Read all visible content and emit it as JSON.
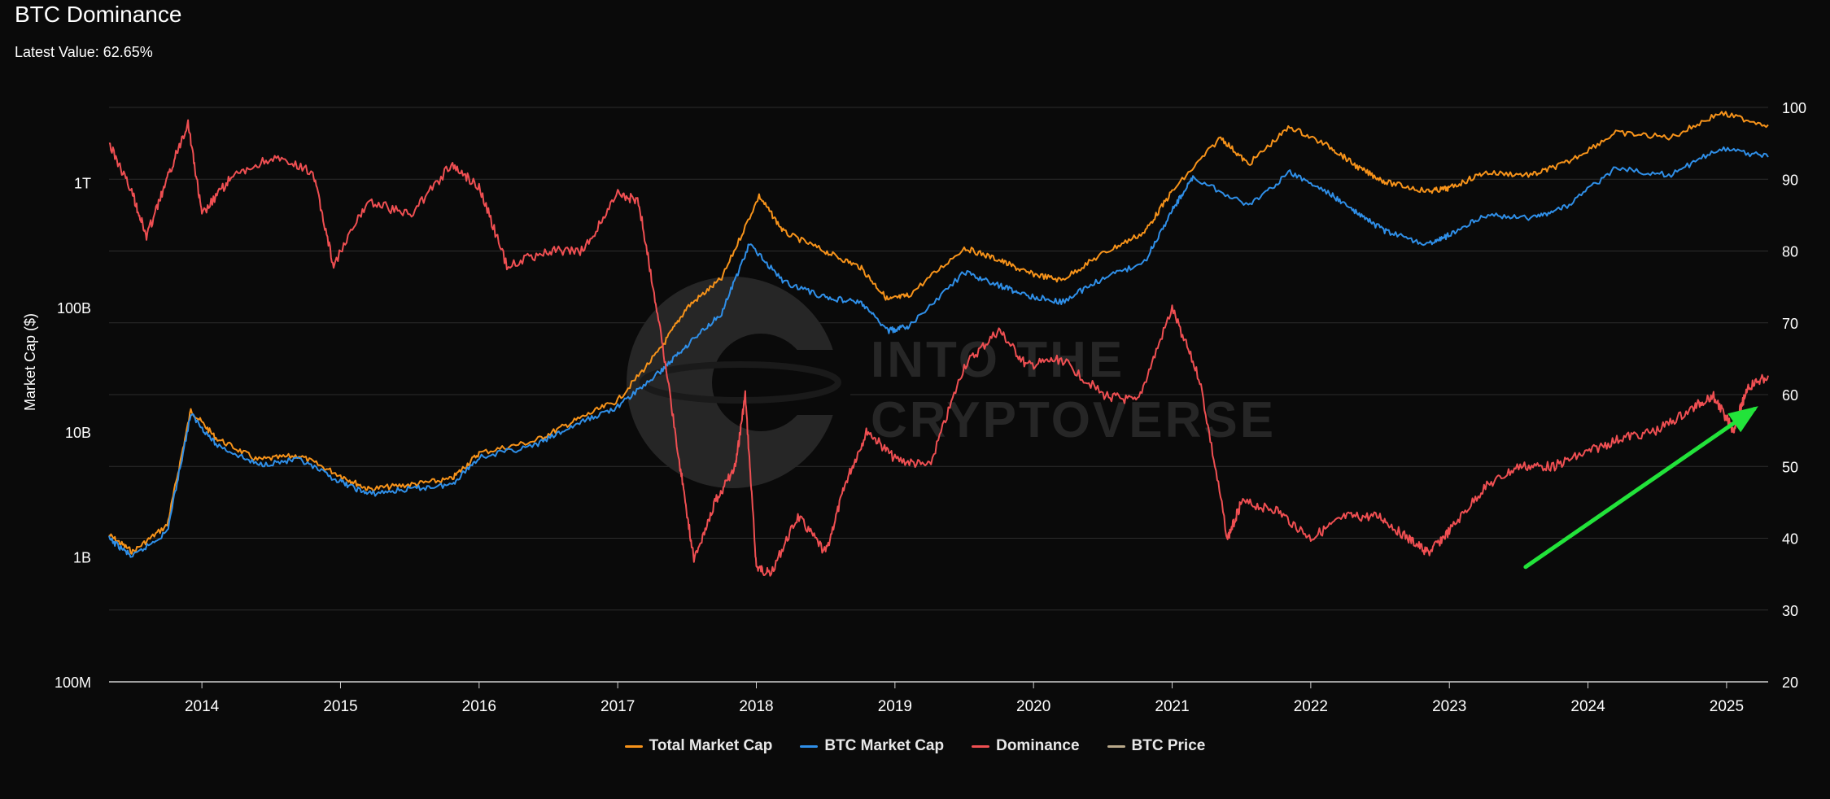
{
  "header": {
    "title": "BTC Dominance",
    "latest_value": "Latest Value: 62.65%"
  },
  "watermark": {
    "line1": "INTO THE",
    "line2": "CRYPTOVERSE"
  },
  "legend": [
    {
      "label": "Total Market Cap",
      "color": "#f7931a"
    },
    {
      "label": "BTC Market Cap",
      "color": "#2f8fe8"
    },
    {
      "label": "Dominance",
      "color": "#ef4f52"
    },
    {
      "label": "BTC Price",
      "color": "#b9a98a"
    }
  ],
  "chart_data": {
    "type": "line",
    "ylabel": "Market Cap ($)",
    "x_ticks": [
      "2014",
      "2015",
      "2016",
      "2017",
      "2018",
      "2019",
      "2020",
      "2021",
      "2022",
      "2023",
      "2024",
      "2025"
    ],
    "xlim": [
      2013.33,
      2025.3
    ],
    "y_left": {
      "scale": "log",
      "range": [
        100000000,
        4000000000000
      ],
      "ticks": [
        "100M",
        "1B",
        "10B",
        "100B",
        "1T"
      ],
      "tick_values": [
        100000000,
        1000000000,
        10000000000,
        100000000000,
        1000000000000
      ]
    },
    "y_right": {
      "range": [
        20,
        100
      ],
      "ticks": [
        "20",
        "30",
        "40",
        "50",
        "60",
        "70",
        "80",
        "90",
        "100"
      ]
    },
    "grid": true,
    "legend_position": "bottom-center",
    "series": [
      {
        "name": "Total Market Cap",
        "color": "#f7931a",
        "axis": "left",
        "points": [
          [
            2013.33,
            1500000000.0
          ],
          [
            2013.5,
            1100000000.0
          ],
          [
            2013.75,
            1800000000.0
          ],
          [
            2013.92,
            15000000000.0
          ],
          [
            2014.1,
            9000000000.0
          ],
          [
            2014.4,
            6000000000.0
          ],
          [
            2014.7,
            6500000000.0
          ],
          [
            2015.0,
            4500000000.0
          ],
          [
            2015.2,
            3500000000.0
          ],
          [
            2015.5,
            3800000000.0
          ],
          [
            2015.8,
            4200000000.0
          ],
          [
            2016.0,
            6800000000.0
          ],
          [
            2016.4,
            8500000000.0
          ],
          [
            2016.7,
            12500000000.0
          ],
          [
            2017.0,
            18000000000.0
          ],
          [
            2017.3,
            45000000000.0
          ],
          [
            2017.5,
            100000000000.0
          ],
          [
            2017.75,
            170000000000.0
          ],
          [
            2018.02,
            780000000000.0
          ],
          [
            2018.2,
            400000000000.0
          ],
          [
            2018.5,
            280000000000.0
          ],
          [
            2018.75,
            210000000000.0
          ],
          [
            2018.95,
            115000000000.0
          ],
          [
            2019.1,
            125000000000.0
          ],
          [
            2019.5,
            300000000000.0
          ],
          [
            2019.75,
            240000000000.0
          ],
          [
            2019.95,
            190000000000.0
          ],
          [
            2020.2,
            165000000000.0
          ],
          [
            2020.5,
            270000000000.0
          ],
          [
            2020.8,
            400000000000.0
          ],
          [
            2021.0,
            850000000000.0
          ],
          [
            2021.35,
            2300000000000.0
          ],
          [
            2021.55,
            1400000000000.0
          ],
          [
            2021.85,
            2800000000000.0
          ],
          [
            2022.15,
            1900000000000.0
          ],
          [
            2022.35,
            1300000000000.0
          ],
          [
            2022.55,
            1000000000000.0
          ],
          [
            2022.85,
            850000000000.0
          ],
          [
            2023.0,
            900000000000.0
          ],
          [
            2023.25,
            1200000000000.0
          ],
          [
            2023.6,
            1150000000000.0
          ],
          [
            2023.85,
            1450000000000.0
          ],
          [
            2024.2,
            2500000000000.0
          ],
          [
            2024.6,
            2300000000000.0
          ],
          [
            2024.95,
            3600000000000.0
          ],
          [
            2025.3,
            2900000000000.0
          ]
        ]
      },
      {
        "name": "BTC Market Cap",
        "color": "#2f8fe8",
        "axis": "left",
        "points": [
          [
            2013.33,
            1400000000.0
          ],
          [
            2013.5,
            1000000000.0
          ],
          [
            2013.75,
            1600000000.0
          ],
          [
            2013.92,
            14000000000.0
          ],
          [
            2014.1,
            8000000000.0
          ],
          [
            2014.4,
            5500000000.0
          ],
          [
            2014.7,
            6000000000.0
          ],
          [
            2015.0,
            4000000000.0
          ],
          [
            2015.2,
            3200000000.0
          ],
          [
            2015.5,
            3500000000.0
          ],
          [
            2015.8,
            3800000000.0
          ],
          [
            2016.0,
            6300000000.0
          ],
          [
            2016.4,
            7800000000.0
          ],
          [
            2016.7,
            11500000000.0
          ],
          [
            2017.0,
            16000000000.0
          ],
          [
            2017.3,
            30000000000.0
          ],
          [
            2017.5,
            50000000000.0
          ],
          [
            2017.75,
            90000000000.0
          ],
          [
            2017.95,
            320000000000.0
          ],
          [
            2018.2,
            160000000000.0
          ],
          [
            2018.5,
            120000000000.0
          ],
          [
            2018.75,
            110000000000.0
          ],
          [
            2018.95,
            65000000000.0
          ],
          [
            2019.1,
            70000000000.0
          ],
          [
            2019.5,
            190000000000.0
          ],
          [
            2019.75,
            150000000000.0
          ],
          [
            2019.95,
            125000000000.0
          ],
          [
            2020.2,
            110000000000.0
          ],
          [
            2020.5,
            170000000000.0
          ],
          [
            2020.8,
            230000000000.0
          ],
          [
            2021.0,
            600000000000.0
          ],
          [
            2021.15,
            1100000000000.0
          ],
          [
            2021.55,
            650000000000.0
          ],
          [
            2021.85,
            1200000000000.0
          ],
          [
            2022.15,
            800000000000.0
          ],
          [
            2022.35,
            550000000000.0
          ],
          [
            2022.55,
            400000000000.0
          ],
          [
            2022.85,
            320000000000.0
          ],
          [
            2023.0,
            380000000000.0
          ],
          [
            2023.25,
            550000000000.0
          ],
          [
            2023.6,
            520000000000.0
          ],
          [
            2023.85,
            650000000000.0
          ],
          [
            2024.2,
            1300000000000.0
          ],
          [
            2024.6,
            1150000000000.0
          ],
          [
            2024.95,
            1900000000000.0
          ],
          [
            2025.3,
            1600000000000.0
          ]
        ]
      },
      {
        "name": "Dominance",
        "color": "#ef4f52",
        "axis": "right",
        "points": [
          [
            2013.33,
            95
          ],
          [
            2013.5,
            88
          ],
          [
            2013.6,
            82
          ],
          [
            2013.75,
            90
          ],
          [
            2013.9,
            98
          ],
          [
            2014.0,
            85
          ],
          [
            2014.2,
            90
          ],
          [
            2014.5,
            93
          ],
          [
            2014.8,
            91
          ],
          [
            2014.95,
            78
          ],
          [
            2015.2,
            87
          ],
          [
            2015.5,
            85
          ],
          [
            2015.8,
            92
          ],
          [
            2016.0,
            89
          ],
          [
            2016.2,
            78
          ],
          [
            2016.5,
            80
          ],
          [
            2016.75,
            80
          ],
          [
            2017.0,
            88
          ],
          [
            2017.15,
            87
          ],
          [
            2017.3,
            70
          ],
          [
            2017.45,
            50
          ],
          [
            2017.55,
            37
          ],
          [
            2017.7,
            45
          ],
          [
            2017.85,
            50
          ],
          [
            2017.92,
            60
          ],
          [
            2018.0,
            36
          ],
          [
            2018.1,
            35
          ],
          [
            2018.3,
            43
          ],
          [
            2018.5,
            38
          ],
          [
            2018.65,
            48
          ],
          [
            2018.8,
            55
          ],
          [
            2019.0,
            51
          ],
          [
            2019.25,
            50
          ],
          [
            2019.5,
            64
          ],
          [
            2019.75,
            69
          ],
          [
            2019.95,
            64
          ],
          [
            2020.2,
            65
          ],
          [
            2020.5,
            60
          ],
          [
            2020.75,
            59
          ],
          [
            2021.0,
            72
          ],
          [
            2021.2,
            62
          ],
          [
            2021.4,
            40
          ],
          [
            2021.5,
            45
          ],
          [
            2021.75,
            44
          ],
          [
            2022.0,
            40
          ],
          [
            2022.25,
            43
          ],
          [
            2022.5,
            43
          ],
          [
            2022.7,
            40
          ],
          [
            2022.85,
            38
          ],
          [
            2023.0,
            41
          ],
          [
            2023.25,
            47
          ],
          [
            2023.5,
            50
          ],
          [
            2023.75,
            50
          ],
          [
            2024.0,
            52
          ],
          [
            2024.25,
            54
          ],
          [
            2024.5,
            55
          ],
          [
            2024.75,
            58
          ],
          [
            2024.9,
            60
          ],
          [
            2025.05,
            55
          ],
          [
            2025.15,
            61
          ],
          [
            2025.3,
            62.65
          ]
        ]
      }
    ],
    "annotations": [
      {
        "type": "arrow",
        "color": "#22e33a",
        "from": [
          2023.55,
          36
        ],
        "to": [
          2025.2,
          58
        ]
      }
    ]
  }
}
